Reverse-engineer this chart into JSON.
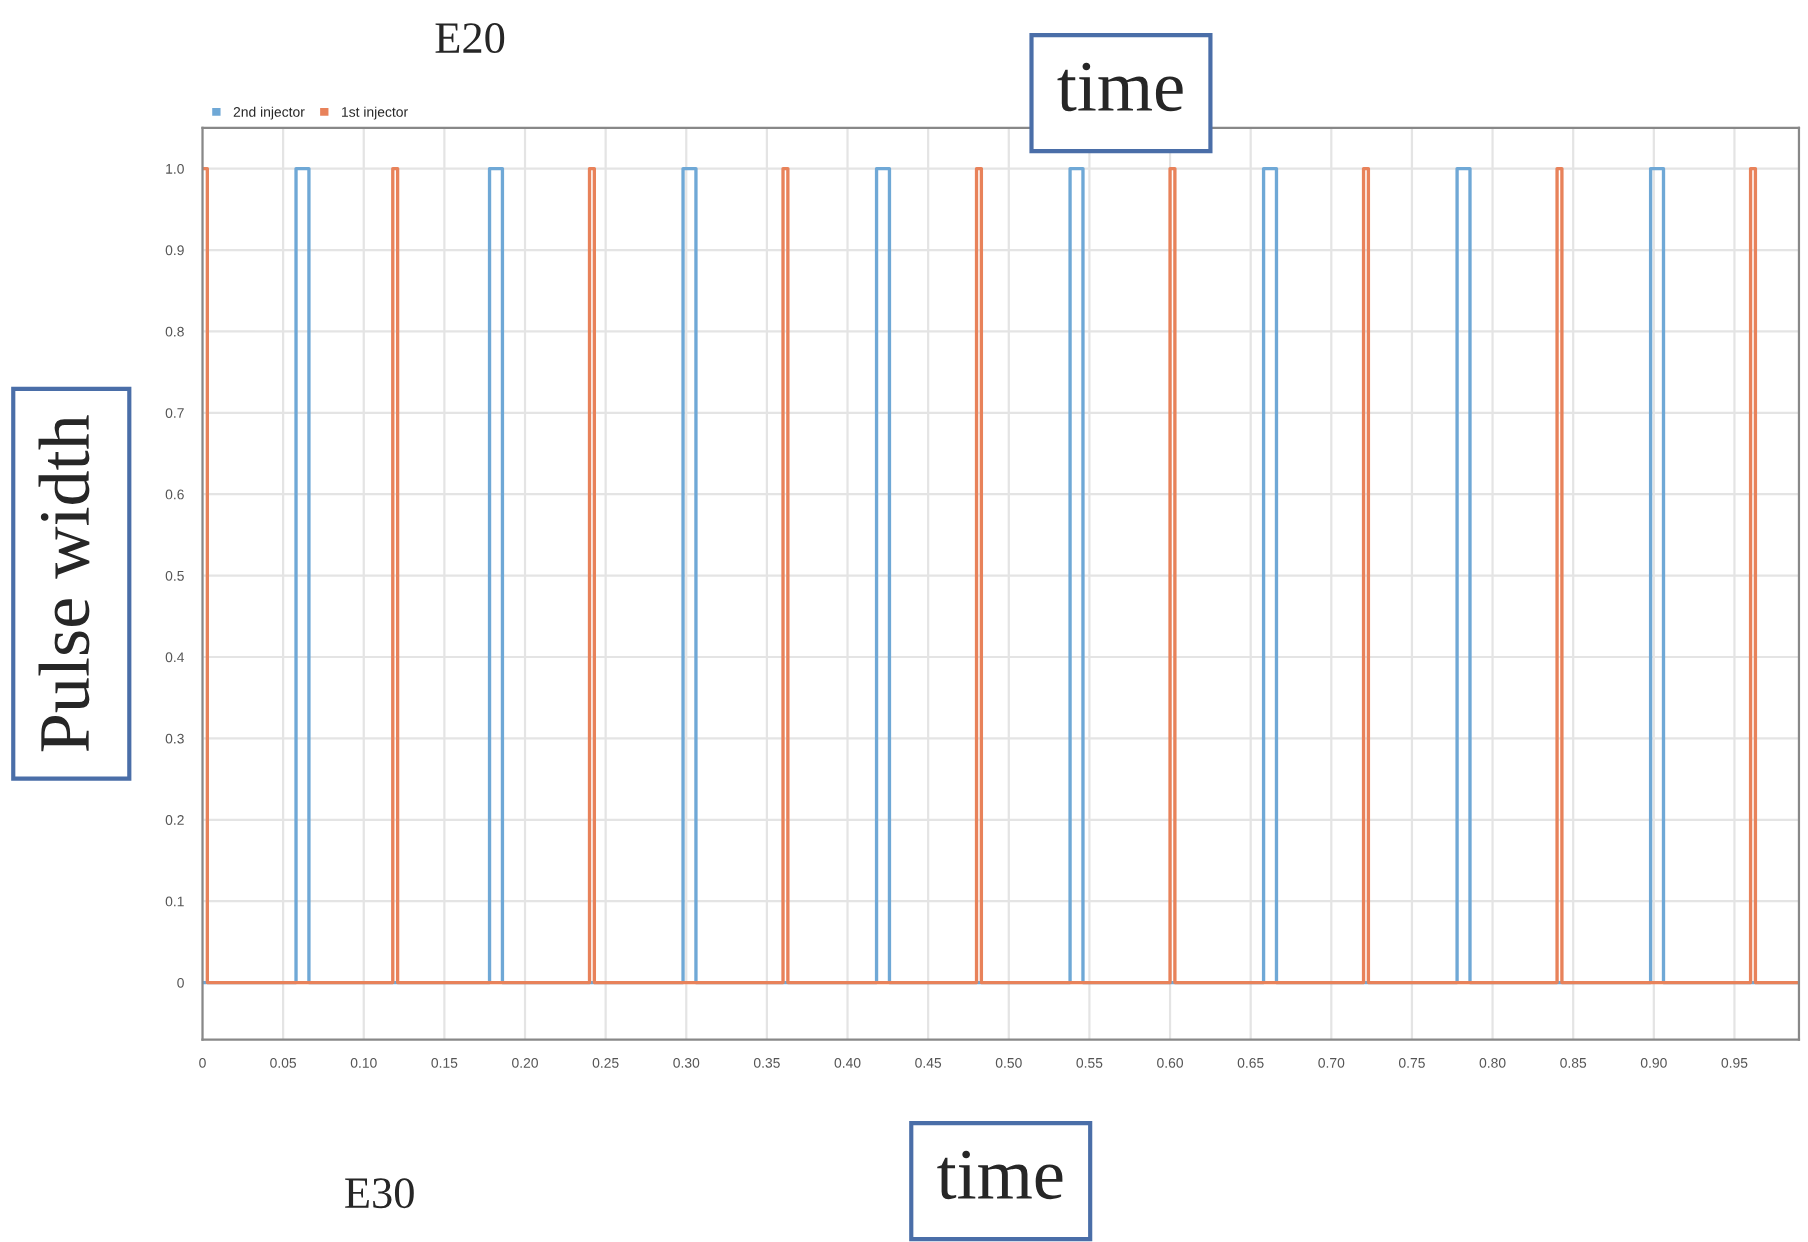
{
  "chart_data": {
    "type": "step",
    "xlabel": "time",
    "ylabel": "Pulse width",
    "annotations": [
      "E20",
      "time",
      "E30"
    ],
    "series": [
      {
        "name": "2nd injector",
        "color": "#6fa8d6",
        "x": [
          0,
          0.058,
          0.066,
          0.178,
          0.186,
          0.298,
          0.306,
          0.418,
          0.426,
          0.538,
          0.546,
          0.658,
          0.666,
          0.778,
          0.786,
          0.898,
          0.906,
          0.99
        ],
        "values": [
          0,
          1,
          0,
          1,
          0,
          1,
          0,
          1,
          0,
          1,
          0,
          1,
          0,
          1,
          0,
          1,
          0,
          0
        ]
      },
      {
        "name": "1st injector",
        "color": "#e8825a",
        "x": [
          0,
          0.003,
          0.118,
          0.121,
          0.24,
          0.243,
          0.36,
          0.363,
          0.48,
          0.483,
          0.6,
          0.603,
          0.72,
          0.723,
          0.84,
          0.843,
          0.96,
          0.963,
          0.99
        ],
        "values": [
          1,
          0,
          1,
          0,
          1,
          0,
          1,
          0,
          1,
          0,
          1,
          0,
          1,
          0,
          1,
          0,
          1,
          0,
          0
        ]
      }
    ],
    "xlim": [
      0,
      0.99
    ],
    "xticks": [
      0,
      0.05,
      {
        "value": 0.1,
        "label": "0.10"
      },
      0.15,
      {
        "value": 0.2,
        "label": "0.20"
      },
      0.25,
      {
        "value": 0.3,
        "label": "0.30"
      },
      0.35,
      {
        "value": 0.4,
        "label": "0.40"
      },
      0.45,
      {
        "value": 0.5,
        "label": "0.50"
      },
      0.55,
      {
        "value": 0.6,
        "label": "0.60"
      },
      0.65,
      {
        "value": 0.7,
        "label": "0.70"
      },
      0.75,
      {
        "value": 0.8,
        "label": "0.80"
      },
      0.85,
      {
        "value": 0.9,
        "label": "0.90"
      },
      0.95
    ],
    "ylim": [
      -0.07,
      1.05
    ],
    "yticks": [
      0,
      0.1,
      0.2,
      0.3,
      0.4,
      0.5,
      0.6,
      0.7,
      0.8,
      0.9,
      {
        "value": 1,
        "label": "1.0"
      }
    ],
    "grid": true,
    "legend": "top left",
    "line_style": "solid",
    "marker": "none"
  }
}
